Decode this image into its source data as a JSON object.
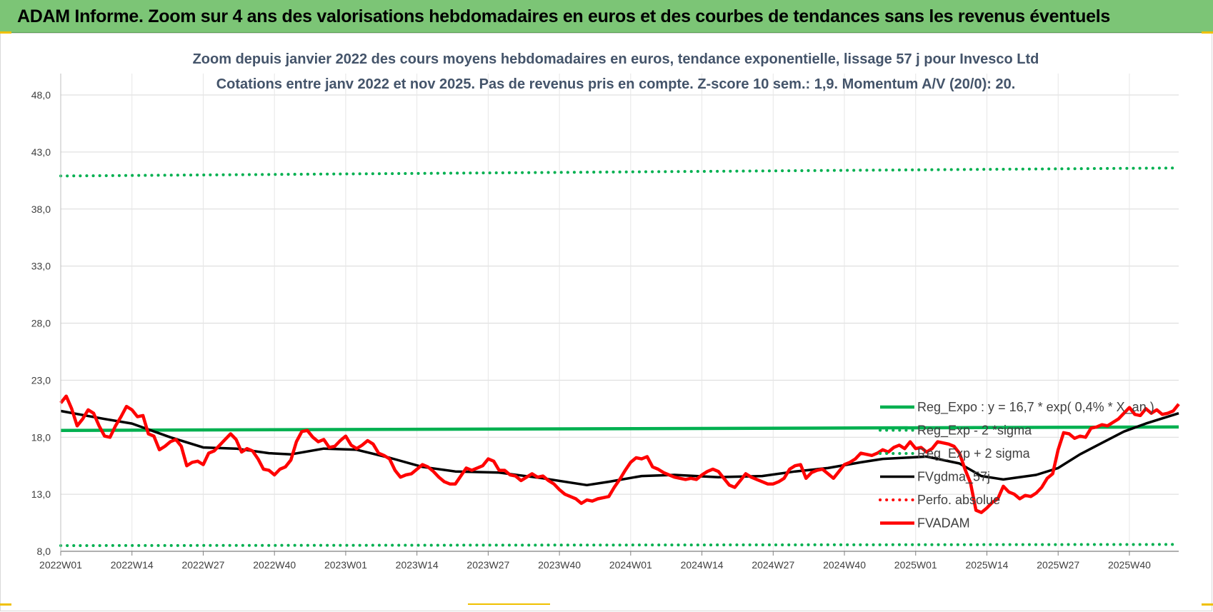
{
  "header": {
    "title": "ADAM Informe. Zoom sur 4 ans des valorisations hebdomadaires en euros et des courbes de tendances sans les revenus éventuels"
  },
  "chart_data": {
    "type": "line",
    "title_line1": "Zoom depuis janvier 2022 des cours moyens hebdomadaires en euros, tendance exponentielle, lissage 57 j pour Invesco Ltd",
    "title_line2": "Cotations entre janv 2022 et nov 2025. Pas de revenus pris en compte. Z-score 10 sem.: 1,9. Momentum A/V (20/0): 20.",
    "ylim": [
      8,
      48
    ],
    "yticks": [
      "8,0",
      "13,0",
      "18,0",
      "23,0",
      "28,0",
      "33,0",
      "38,0",
      "43,0",
      "48,0"
    ],
    "ytick_values": [
      8,
      13,
      18,
      23,
      28,
      33,
      38,
      43,
      48
    ],
    "xticks": [
      "2022W01",
      "2022W14",
      "2022W27",
      "2022W40",
      "2023W01",
      "2023W14",
      "2023W27",
      "2023W40",
      "2024W01",
      "2024W14",
      "2024W27",
      "2024W40",
      "2025W01",
      "2025W14",
      "2025W27",
      "2025W40"
    ],
    "xtick_index": [
      0,
      13,
      26,
      39,
      52,
      65,
      78,
      91,
      104,
      117,
      130,
      143,
      156,
      169,
      182,
      195
    ],
    "n_weeks": 205,
    "grid": true,
    "legend": "right",
    "series": [
      {
        "name": "Reg_Expo : y = 16,7 * exp( 0,4% * X_an )",
        "color": "#00b050",
        "style": "solid",
        "points": [
          [
            0,
            18.6
          ],
          [
            204,
            18.9
          ]
        ]
      },
      {
        "name": "Reg_Exp - 2 *sigma",
        "color": "#00b050",
        "style": "dotted",
        "points": [
          [
            0,
            8.5
          ],
          [
            204,
            8.6
          ]
        ]
      },
      {
        "name": "Reg_Exp + 2 sigma",
        "color": "#00b050",
        "style": "dotted",
        "points": [
          [
            0,
            40.9
          ],
          [
            204,
            41.6
          ]
        ]
      },
      {
        "name": "FVgdma_57j",
        "color": "#000000",
        "style": "solid",
        "points": [
          [
            0,
            20.3
          ],
          [
            8,
            19.6
          ],
          [
            13,
            19.2
          ],
          [
            20,
            18.0
          ],
          [
            26,
            17.1
          ],
          [
            32,
            17.0
          ],
          [
            38,
            16.6
          ],
          [
            42,
            16.5
          ],
          [
            48,
            17.0
          ],
          [
            54,
            16.9
          ],
          [
            60,
            16.2
          ],
          [
            66,
            15.4
          ],
          [
            72,
            15.0
          ],
          [
            80,
            14.9
          ],
          [
            88,
            14.4
          ],
          [
            96,
            13.8
          ],
          [
            100,
            14.1
          ],
          [
            106,
            14.6
          ],
          [
            112,
            14.7
          ],
          [
            120,
            14.5
          ],
          [
            128,
            14.6
          ],
          [
            134,
            15.0
          ],
          [
            140,
            15.3
          ],
          [
            146,
            15.8
          ],
          [
            150,
            16.1
          ],
          [
            154,
            16.2
          ],
          [
            158,
            16.3
          ],
          [
            164,
            15.7
          ],
          [
            168,
            14.6
          ],
          [
            172,
            14.3
          ],
          [
            178,
            14.7
          ],
          [
            182,
            15.3
          ],
          [
            186,
            16.5
          ],
          [
            190,
            17.5
          ],
          [
            194,
            18.5
          ],
          [
            198,
            19.2
          ],
          [
            204,
            20.1
          ]
        ]
      },
      {
        "name": "Perfo. absolue",
        "color": "#ff0000",
        "style": "dotted",
        "points": []
      },
      {
        "name": "FVADAM",
        "color": "#ff0000",
        "style": "thick",
        "points": [
          [
            0,
            21.0
          ],
          [
            1,
            21.6
          ],
          [
            2,
            20.5
          ],
          [
            3,
            19.0
          ],
          [
            4,
            19.6
          ],
          [
            5,
            20.4
          ],
          [
            6,
            20.1
          ],
          [
            7,
            19.0
          ],
          [
            8,
            18.1
          ],
          [
            9,
            18.0
          ],
          [
            10,
            19.0
          ],
          [
            11,
            19.8
          ],
          [
            12,
            20.7
          ],
          [
            13,
            20.4
          ],
          [
            14,
            19.8
          ],
          [
            15,
            19.9
          ],
          [
            16,
            18.3
          ],
          [
            17,
            18.1
          ],
          [
            18,
            16.9
          ],
          [
            19,
            17.2
          ],
          [
            20,
            17.6
          ],
          [
            21,
            17.8
          ],
          [
            22,
            17.2
          ],
          [
            23,
            15.5
          ],
          [
            24,
            15.8
          ],
          [
            25,
            15.9
          ],
          [
            26,
            15.6
          ],
          [
            27,
            16.6
          ],
          [
            28,
            16.8
          ],
          [
            29,
            17.3
          ],
          [
            30,
            17.8
          ],
          [
            31,
            18.3
          ],
          [
            32,
            17.8
          ],
          [
            33,
            16.7
          ],
          [
            34,
            17.0
          ],
          [
            35,
            16.8
          ],
          [
            36,
            16.1
          ],
          [
            37,
            15.2
          ],
          [
            38,
            15.1
          ],
          [
            39,
            14.7
          ],
          [
            40,
            15.2
          ],
          [
            41,
            15.4
          ],
          [
            42,
            16.0
          ],
          [
            43,
            17.6
          ],
          [
            44,
            18.5
          ],
          [
            45,
            18.6
          ],
          [
            46,
            18.0
          ],
          [
            47,
            17.6
          ],
          [
            48,
            17.8
          ],
          [
            49,
            17.1
          ],
          [
            50,
            17.2
          ],
          [
            51,
            17.7
          ],
          [
            52,
            18.1
          ],
          [
            53,
            17.3
          ],
          [
            54,
            17.0
          ],
          [
            55,
            17.3
          ],
          [
            56,
            17.7
          ],
          [
            57,
            17.4
          ],
          [
            58,
            16.6
          ],
          [
            59,
            16.4
          ],
          [
            60,
            16.1
          ],
          [
            61,
            15.1
          ],
          [
            62,
            14.5
          ],
          [
            63,
            14.7
          ],
          [
            64,
            14.8
          ],
          [
            65,
            15.2
          ],
          [
            66,
            15.6
          ],
          [
            67,
            15.4
          ],
          [
            68,
            15.0
          ],
          [
            69,
            14.5
          ],
          [
            70,
            14.1
          ],
          [
            71,
            13.9
          ],
          [
            72,
            13.9
          ],
          [
            73,
            14.6
          ],
          [
            74,
            15.3
          ],
          [
            75,
            15.1
          ],
          [
            76,
            15.3
          ],
          [
            77,
            15.5
          ],
          [
            78,
            16.1
          ],
          [
            79,
            15.9
          ],
          [
            80,
            15.1
          ],
          [
            81,
            15.1
          ],
          [
            82,
            14.7
          ],
          [
            83,
            14.6
          ],
          [
            84,
            14.2
          ],
          [
            85,
            14.5
          ],
          [
            86,
            14.8
          ],
          [
            87,
            14.5
          ],
          [
            88,
            14.6
          ],
          [
            89,
            14.2
          ],
          [
            90,
            13.9
          ],
          [
            91,
            13.4
          ],
          [
            92,
            13.0
          ],
          [
            93,
            12.8
          ],
          [
            94,
            12.6
          ],
          [
            95,
            12.2
          ],
          [
            96,
            12.5
          ],
          [
            97,
            12.4
          ],
          [
            98,
            12.6
          ],
          [
            99,
            12.7
          ],
          [
            100,
            12.8
          ],
          [
            101,
            13.6
          ],
          [
            102,
            14.3
          ],
          [
            103,
            15.1
          ],
          [
            104,
            15.8
          ],
          [
            105,
            16.2
          ],
          [
            106,
            16.1
          ],
          [
            107,
            16.3
          ],
          [
            108,
            15.4
          ],
          [
            109,
            15.2
          ],
          [
            110,
            14.9
          ],
          [
            111,
            14.7
          ],
          [
            112,
            14.5
          ],
          [
            113,
            14.4
          ],
          [
            114,
            14.3
          ],
          [
            115,
            14.4
          ],
          [
            116,
            14.3
          ],
          [
            117,
            14.7
          ],
          [
            118,
            15.0
          ],
          [
            119,
            15.2
          ],
          [
            120,
            15.0
          ],
          [
            121,
            14.4
          ],
          [
            122,
            13.8
          ],
          [
            123,
            13.6
          ],
          [
            124,
            14.2
          ],
          [
            125,
            14.8
          ],
          [
            126,
            14.5
          ],
          [
            127,
            14.3
          ],
          [
            128,
            14.1
          ],
          [
            129,
            13.9
          ],
          [
            130,
            13.9
          ],
          [
            131,
            14.1
          ],
          [
            132,
            14.4
          ],
          [
            133,
            15.2
          ],
          [
            134,
            15.5
          ],
          [
            135,
            15.6
          ],
          [
            136,
            14.4
          ],
          [
            137,
            14.9
          ],
          [
            138,
            15.1
          ],
          [
            139,
            15.2
          ],
          [
            140,
            14.8
          ],
          [
            141,
            14.4
          ],
          [
            142,
            15.0
          ],
          [
            143,
            15.6
          ],
          [
            144,
            15.8
          ],
          [
            145,
            16.1
          ],
          [
            146,
            16.6
          ],
          [
            147,
            16.5
          ],
          [
            148,
            16.4
          ],
          [
            149,
            16.6
          ],
          [
            150,
            16.9
          ],
          [
            151,
            16.7
          ],
          [
            152,
            17.1
          ],
          [
            153,
            17.3
          ],
          [
            154,
            17.0
          ],
          [
            155,
            17.6
          ],
          [
            156,
            17.0
          ],
          [
            157,
            17.1
          ],
          [
            158,
            16.7
          ],
          [
            159,
            17.0
          ],
          [
            160,
            17.6
          ],
          [
            161,
            17.5
          ],
          [
            162,
            17.4
          ],
          [
            163,
            17.2
          ],
          [
            164,
            16.6
          ],
          [
            165,
            15.2
          ],
          [
            166,
            14.0
          ],
          [
            167,
            11.6
          ],
          [
            168,
            11.4
          ],
          [
            169,
            11.8
          ],
          [
            170,
            12.3
          ],
          [
            171,
            12.6
          ],
          [
            172,
            13.7
          ],
          [
            173,
            13.2
          ],
          [
            174,
            13.0
          ],
          [
            175,
            12.6
          ],
          [
            176,
            12.9
          ],
          [
            177,
            12.8
          ],
          [
            178,
            13.1
          ],
          [
            179,
            13.6
          ],
          [
            180,
            14.4
          ],
          [
            181,
            14.8
          ],
          [
            182,
            16.9
          ],
          [
            183,
            18.4
          ],
          [
            184,
            18.3
          ],
          [
            185,
            17.9
          ],
          [
            186,
            18.1
          ],
          [
            187,
            18.0
          ],
          [
            188,
            18.8
          ],
          [
            189,
            18.9
          ],
          [
            190,
            19.1
          ],
          [
            191,
            19.0
          ],
          [
            192,
            19.3
          ],
          [
            193,
            19.6
          ],
          [
            194,
            20.1
          ],
          [
            195,
            20.6
          ],
          [
            196,
            20.0
          ],
          [
            197,
            19.9
          ],
          [
            198,
            20.5
          ],
          [
            199,
            20.1
          ],
          [
            200,
            20.4
          ],
          [
            201,
            20.0
          ],
          [
            202,
            20.1
          ],
          [
            203,
            20.3
          ],
          [
            204,
            20.9
          ]
        ]
      }
    ]
  }
}
